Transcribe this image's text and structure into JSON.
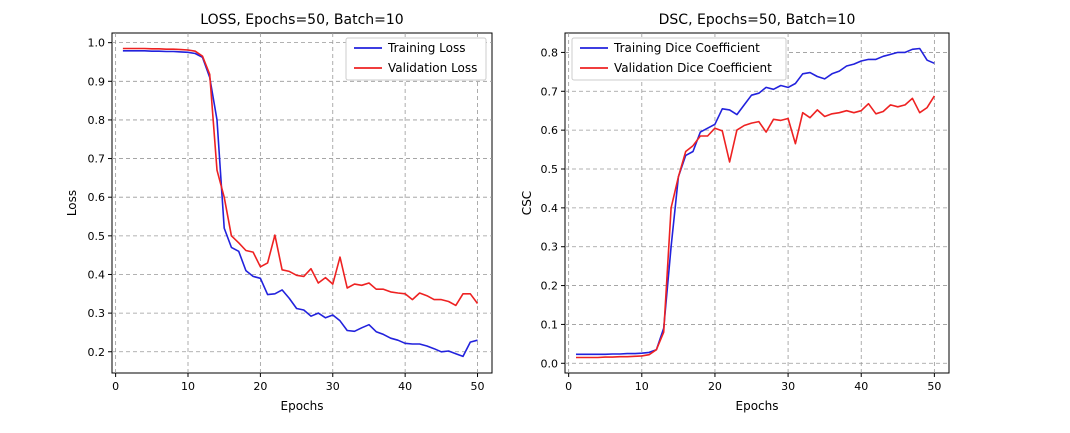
{
  "chart_data": [
    {
      "type": "line",
      "title": "LOSS, Epochs=50, Batch=10",
      "xlabel": "Epochs",
      "ylabel": "Loss",
      "xlim": [
        -0.5,
        52
      ],
      "ylim": [
        0.145,
        1.025
      ],
      "xticks": [
        0,
        10,
        20,
        30,
        40,
        50
      ],
      "yticks": [
        0.2,
        0.3,
        0.4,
        0.5,
        0.6,
        0.7,
        0.8,
        0.9,
        1.0
      ],
      "grid": true,
      "legend_position": "top-right",
      "x": [
        1,
        2,
        3,
        4,
        5,
        6,
        7,
        8,
        9,
        10,
        11,
        12,
        13,
        14,
        15,
        16,
        17,
        18,
        19,
        20,
        21,
        22,
        23,
        24,
        25,
        26,
        27,
        28,
        29,
        30,
        31,
        32,
        33,
        34,
        35,
        36,
        37,
        38,
        39,
        40,
        41,
        42,
        43,
        44,
        45,
        46,
        47,
        48,
        49,
        50
      ],
      "series": [
        {
          "name": "Training Loss",
          "color": "#2222dd",
          "values": [
            0.979,
            0.979,
            0.979,
            0.979,
            0.978,
            0.978,
            0.977,
            0.977,
            0.976,
            0.975,
            0.972,
            0.962,
            0.91,
            0.8,
            0.52,
            0.47,
            0.46,
            0.41,
            0.395,
            0.39,
            0.348,
            0.35,
            0.36,
            0.338,
            0.312,
            0.308,
            0.292,
            0.3,
            0.288,
            0.295,
            0.28,
            0.255,
            0.253,
            0.262,
            0.27,
            0.252,
            0.245,
            0.235,
            0.23,
            0.222,
            0.22,
            0.22,
            0.215,
            0.208,
            0.2,
            0.202,
            0.195,
            0.188,
            0.225,
            0.23
          ]
        },
        {
          "name": "Validation Loss",
          "color": "#ee2222",
          "values": [
            0.985,
            0.985,
            0.985,
            0.985,
            0.984,
            0.984,
            0.983,
            0.983,
            0.982,
            0.981,
            0.978,
            0.965,
            0.918,
            0.67,
            0.6,
            0.5,
            0.482,
            0.462,
            0.458,
            0.42,
            0.43,
            0.502,
            0.412,
            0.408,
            0.398,
            0.395,
            0.415,
            0.378,
            0.392,
            0.375,
            0.445,
            0.365,
            0.375,
            0.372,
            0.378,
            0.362,
            0.362,
            0.355,
            0.352,
            0.35,
            0.335,
            0.352,
            0.345,
            0.335,
            0.335,
            0.33,
            0.32,
            0.35,
            0.35,
            0.325
          ]
        }
      ]
    },
    {
      "type": "line",
      "title": "DSC, Epochs=50, Batch=10",
      "xlabel": "Epochs",
      "ylabel": "CSC",
      "xlim": [
        -0.5,
        52
      ],
      "ylim": [
        -0.025,
        0.85
      ],
      "xticks": [
        0,
        10,
        20,
        30,
        40,
        50
      ],
      "yticks": [
        0.0,
        0.1,
        0.2,
        0.3,
        0.4,
        0.5,
        0.6,
        0.7,
        0.8
      ],
      "grid": true,
      "legend_position": "top-left",
      "x": [
        1,
        2,
        3,
        4,
        5,
        6,
        7,
        8,
        9,
        10,
        11,
        12,
        13,
        14,
        15,
        16,
        17,
        18,
        19,
        20,
        21,
        22,
        23,
        24,
        25,
        26,
        27,
        28,
        29,
        30,
        31,
        32,
        33,
        34,
        35,
        36,
        37,
        38,
        39,
        40,
        41,
        42,
        43,
        44,
        45,
        46,
        47,
        48,
        49,
        50
      ],
      "series": [
        {
          "name": "Training Dice Coefficient",
          "color": "#2222dd",
          "values": [
            0.023,
            0.023,
            0.023,
            0.023,
            0.023,
            0.024,
            0.024,
            0.025,
            0.025,
            0.026,
            0.028,
            0.035,
            0.09,
            0.3,
            0.48,
            0.535,
            0.545,
            0.595,
            0.605,
            0.615,
            0.655,
            0.652,
            0.64,
            0.665,
            0.69,
            0.695,
            0.71,
            0.705,
            0.715,
            0.71,
            0.72,
            0.745,
            0.748,
            0.738,
            0.732,
            0.745,
            0.752,
            0.765,
            0.77,
            0.778,
            0.782,
            0.782,
            0.79,
            0.795,
            0.8,
            0.8,
            0.808,
            0.81,
            0.78,
            0.772
          ]
        },
        {
          "name": "Validation Dice Coefficient",
          "color": "#ee2222",
          "values": [
            0.015,
            0.015,
            0.015,
            0.015,
            0.016,
            0.016,
            0.017,
            0.017,
            0.018,
            0.019,
            0.022,
            0.035,
            0.08,
            0.4,
            0.48,
            0.545,
            0.56,
            0.585,
            0.585,
            0.605,
            0.598,
            0.518,
            0.6,
            0.612,
            0.618,
            0.622,
            0.595,
            0.628,
            0.625,
            0.63,
            0.565,
            0.645,
            0.632,
            0.652,
            0.635,
            0.642,
            0.645,
            0.65,
            0.645,
            0.65,
            0.668,
            0.642,
            0.648,
            0.665,
            0.66,
            0.665,
            0.682,
            0.645,
            0.658,
            0.688
          ]
        }
      ]
    }
  ]
}
